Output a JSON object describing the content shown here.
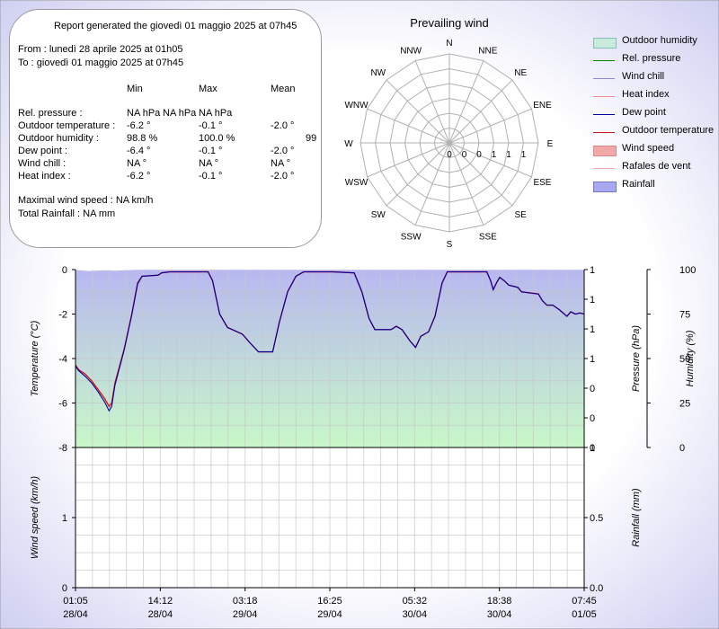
{
  "report": {
    "title": "Report generated the giovedì 01 maggio 2025 at 07h45",
    "from": "From : lunedì 28 aprile 2025 at 01h05",
    "to": "To : giovedì 01 maggio 2025 at 07h45",
    "headers": [
      "Min",
      "Max",
      "Mean"
    ],
    "rows": [
      {
        "label": "Rel. pressure :",
        "min": "NA hPa",
        "max": "NA hPa",
        "mean": "NA hPa"
      },
      {
        "label": "Outdoor temperature :",
        "min": "-6.2 °",
        "max": "-0.1 °",
        "mean": "-2.0 °"
      },
      {
        "label": "Outdoor humidity :",
        "min": "98.8 %",
        "max": "100.0 %",
        "mean": "99"
      },
      {
        "label": "Dew point :",
        "min": "-6.4 °",
        "max": "-0.1 °",
        "mean": "-2.0 °"
      },
      {
        "label": "Wind chill :",
        "min": "NA °",
        "max": "NA °",
        "mean": "NA °"
      },
      {
        "label": "Heat index :",
        "min": "-6.2 °",
        "max": "-0.1 °",
        "mean": "-2.0 °"
      }
    ],
    "max_wind": "Maximal wind speed : NA km/h",
    "total_rain": "Total Rainfall : NA mm"
  },
  "colors": {
    "background_edge": "#c8c8f0",
    "humidity_fill_top": "#b8b8f0",
    "humidity_fill_bottom": "#c8f8c8",
    "temperature": "#d01818",
    "dew_point": "#0000a0",
    "grid": "#c8c8c8"
  },
  "legend": [
    {
      "label": "Outdoor humidity",
      "kind": "box",
      "color": "#c8ecdc",
      "border": "#88bbbb"
    },
    {
      "label": "Rel. pressure",
      "kind": "line",
      "color": "#008800"
    },
    {
      "label": "Wind chill",
      "kind": "line",
      "color": "#8888dd"
    },
    {
      "label": "Heat index",
      "kind": "line",
      "color": "#ff8888"
    },
    {
      "label": "Dew point",
      "kind": "line",
      "color": "#0000a0"
    },
    {
      "label": "Outdoor temperature",
      "kind": "line",
      "color": "#d01818"
    },
    {
      "label": "Wind speed",
      "kind": "box",
      "color": "#f0a8a8",
      "border": "#dd8888"
    },
    {
      "label": "Rafales de vent",
      "kind": "line",
      "color": "#ffaaaa"
    },
    {
      "label": "Rainfall",
      "kind": "box",
      "color": "#a8a8f0",
      "border": "#7777cc"
    }
  ],
  "chart_data": [
    {
      "type": "radar",
      "title": "Prevailing wind",
      "directions": [
        "N",
        "NNE",
        "NE",
        "ENE",
        "E",
        "ESE",
        "SE",
        "SSE",
        "S",
        "SSW",
        "SW",
        "WSW",
        "W",
        "WNW",
        "NW",
        "NNW"
      ],
      "ring_labels": [
        "0",
        "0",
        "0",
        "1",
        "1",
        "1"
      ],
      "values": [
        0,
        0,
        0,
        0,
        0,
        0,
        0,
        0,
        0,
        0,
        0,
        0,
        0,
        0,
        0,
        0
      ]
    },
    {
      "type": "line",
      "title": "",
      "x_ticks": [
        {
          "time": "01:05",
          "date": "28/04"
        },
        {
          "time": "14:12",
          "date": "28/04"
        },
        {
          "time": "03:18",
          "date": "29/04"
        },
        {
          "time": "16:25",
          "date": "29/04"
        },
        {
          "time": "05:32",
          "date": "30/04"
        },
        {
          "time": "18:38",
          "date": "30/04"
        },
        {
          "time": "07:45",
          "date": "01/05"
        }
      ],
      "x_range_hours": [
        0,
        78.67
      ],
      "temperature": {
        "ylabel": "Temperature (°C)",
        "ylim": [
          -8,
          0
        ],
        "ticks": [
          "0",
          "-2",
          "-4",
          "-6",
          "-8"
        ]
      },
      "pressure": {
        "ylabel": "Pressure (hPa)",
        "ticks": [
          "1",
          "1",
          "1",
          "1",
          "0",
          "0",
          "0"
        ]
      },
      "humidity": {
        "ylabel": "Humidity (%)",
        "ylim": [
          0,
          100
        ],
        "ticks": [
          "100",
          "75",
          "50",
          "25",
          "0"
        ],
        "values": [
          [
            0,
            99.8
          ],
          [
            2.0,
            99.2
          ],
          [
            4.5,
            99.6
          ],
          [
            6.0,
            99.4
          ],
          [
            9.5,
            99.9
          ],
          [
            78.67,
            99.9
          ]
        ]
      },
      "series": [
        {
          "name": "Outdoor temperature",
          "color": "#d01818",
          "points": [
            [
              0,
              -4.3
            ],
            [
              0.5,
              -4.5
            ],
            [
              1.5,
              -4.7
            ],
            [
              2.5,
              -5.0
            ],
            [
              3.5,
              -5.4
            ],
            [
              4.5,
              -5.8
            ],
            [
              5.2,
              -6.15
            ],
            [
              5.6,
              -6.0
            ],
            [
              6.1,
              -5.1
            ],
            [
              7.5,
              -3.6
            ],
            [
              8.7,
              -2.0
            ],
            [
              9.6,
              -0.6
            ],
            [
              10.3,
              -0.3
            ],
            [
              12.8,
              -0.25
            ],
            [
              13.3,
              -0.15
            ],
            [
              14.6,
              -0.1
            ],
            [
              20.5,
              -0.1
            ],
            [
              21.2,
              -0.5
            ],
            [
              22.3,
              -2.0
            ],
            [
              23.5,
              -2.6
            ],
            [
              25.8,
              -2.9
            ],
            [
              27.0,
              -3.3
            ],
            [
              28.3,
              -3.7
            ],
            [
              30.5,
              -3.7
            ],
            [
              31.5,
              -2.4
            ],
            [
              32.8,
              -1.0
            ],
            [
              34.1,
              -0.3
            ],
            [
              35.3,
              -0.1
            ],
            [
              39.7,
              -0.1
            ],
            [
              43.1,
              -0.15
            ],
            [
              44.3,
              -1.0
            ],
            [
              45.4,
              -2.2
            ],
            [
              46.3,
              -2.7
            ],
            [
              48.8,
              -2.7
            ],
            [
              49.6,
              -2.55
            ],
            [
              50.5,
              -2.7
            ],
            [
              51.7,
              -3.2
            ],
            [
              52.6,
              -3.5
            ],
            [
              53.4,
              -3.0
            ],
            [
              54.6,
              -2.8
            ],
            [
              55.6,
              -2.1
            ],
            [
              56.7,
              -0.6
            ],
            [
              57.5,
              -0.1
            ],
            [
              63.6,
              -0.1
            ],
            [
              64.2,
              -0.5
            ],
            [
              64.6,
              -0.9
            ],
            [
              65.1,
              -0.6
            ],
            [
              65.6,
              -0.35
            ],
            [
              66.3,
              -0.5
            ],
            [
              67.0,
              -0.7
            ],
            [
              68.4,
              -0.8
            ],
            [
              69.0,
              -1.0
            ],
            [
              70.3,
              -1.05
            ],
            [
              71.6,
              -1.1
            ],
            [
              72.2,
              -1.4
            ],
            [
              72.9,
              -1.6
            ],
            [
              73.8,
              -1.6
            ],
            [
              74.8,
              -1.8
            ],
            [
              76.0,
              -2.1
            ],
            [
              76.6,
              -1.9
            ],
            [
              77.3,
              -2.0
            ],
            [
              78.0,
              -1.95
            ],
            [
              78.67,
              -2.0
            ]
          ]
        },
        {
          "name": "Dew point",
          "color": "#0000a0",
          "points": [
            [
              0,
              -4.35
            ],
            [
              0.5,
              -4.55
            ],
            [
              1.5,
              -4.8
            ],
            [
              2.5,
              -5.1
            ],
            [
              3.5,
              -5.5
            ],
            [
              4.5,
              -5.95
            ],
            [
              5.2,
              -6.35
            ],
            [
              5.6,
              -6.15
            ],
            [
              6.1,
              -5.2
            ],
            [
              7.5,
              -3.65
            ],
            [
              8.7,
              -2.05
            ],
            [
              9.6,
              -0.65
            ],
            [
              10.3,
              -0.3
            ],
            [
              12.8,
              -0.25
            ],
            [
              13.3,
              -0.15
            ],
            [
              14.6,
              -0.1
            ],
            [
              20.5,
              -0.1
            ],
            [
              21.2,
              -0.5
            ],
            [
              22.3,
              -2.0
            ],
            [
              23.5,
              -2.6
            ],
            [
              25.8,
              -2.9
            ],
            [
              27.0,
              -3.3
            ],
            [
              28.3,
              -3.7
            ],
            [
              30.5,
              -3.7
            ],
            [
              31.5,
              -2.4
            ],
            [
              32.8,
              -1.0
            ],
            [
              34.1,
              -0.3
            ],
            [
              35.3,
              -0.1
            ],
            [
              39.7,
              -0.1
            ],
            [
              43.1,
              -0.15
            ],
            [
              44.3,
              -1.0
            ],
            [
              45.4,
              -2.2
            ],
            [
              46.3,
              -2.7
            ],
            [
              48.8,
              -2.7
            ],
            [
              49.6,
              -2.55
            ],
            [
              50.5,
              -2.7
            ],
            [
              51.7,
              -3.2
            ],
            [
              52.6,
              -3.5
            ],
            [
              53.4,
              -3.0
            ],
            [
              54.6,
              -2.8
            ],
            [
              55.6,
              -2.1
            ],
            [
              56.7,
              -0.6
            ],
            [
              57.5,
              -0.1
            ],
            [
              63.6,
              -0.1
            ],
            [
              64.2,
              -0.5
            ],
            [
              64.6,
              -0.9
            ],
            [
              65.1,
              -0.6
            ],
            [
              65.6,
              -0.35
            ],
            [
              66.3,
              -0.5
            ],
            [
              67.0,
              -0.7
            ],
            [
              68.4,
              -0.8
            ],
            [
              69.0,
              -1.0
            ],
            [
              70.3,
              -1.05
            ],
            [
              71.6,
              -1.1
            ],
            [
              72.2,
              -1.4
            ],
            [
              72.9,
              -1.6
            ],
            [
              73.8,
              -1.6
            ],
            [
              74.8,
              -1.8
            ],
            [
              76.0,
              -2.1
            ],
            [
              76.6,
              -1.9
            ],
            [
              77.3,
              -2.0
            ],
            [
              78.0,
              -1.95
            ],
            [
              78.67,
              -2.0
            ]
          ]
        }
      ]
    },
    {
      "type": "bar",
      "title": "",
      "wind": {
        "ylabel": "Wind speed (km/h)",
        "ylim": [
          0,
          2
        ],
        "ticks": [
          "1",
          "0"
        ]
      },
      "rain": {
        "ylabel": "Rainfall (mm)",
        "ylim": [
          0,
          1
        ],
        "ticks": [
          "1",
          "0.5",
          "0.0"
        ]
      },
      "values": []
    }
  ]
}
